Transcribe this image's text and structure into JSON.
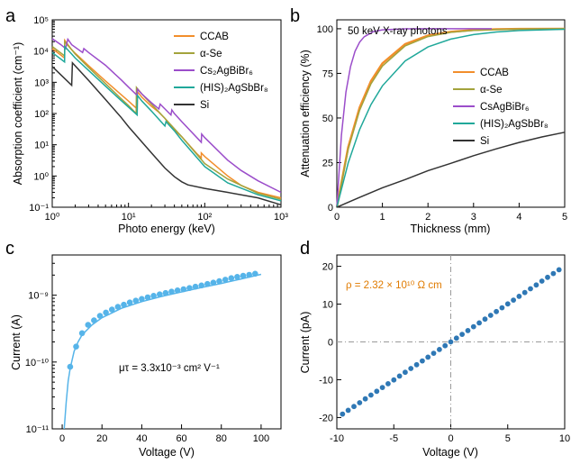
{
  "chart_data": [
    {
      "panel": "a",
      "type": "line",
      "xlabel": "Photo energy (keV)",
      "ylabel": "Absorption coefficient (cm⁻¹)",
      "xscale": "log",
      "yscale": "log",
      "xlim": [
        1,
        1000
      ],
      "ylim": [
        0.1,
        100000
      ],
      "xticks": [
        "10⁰",
        "10¹",
        "10²",
        "10³"
      ],
      "yticks": [
        "10⁻¹",
        "10⁰",
        "10¹",
        "10²",
        "10³",
        "10⁴",
        "10⁵"
      ],
      "legend_position": "top-right",
      "series": [
        {
          "name": "CCAB",
          "color": "#f28e2b",
          "points": [
            [
              1,
              12000
            ],
            [
              1.45,
              6000
            ],
            [
              1.46,
              22000
            ],
            [
              1.8,
              11000
            ],
            [
              2,
              8500
            ],
            [
              3,
              3400
            ],
            [
              5,
              1100
            ],
            [
              8,
              400
            ],
            [
              10,
              250
            ],
            [
              13,
              140
            ],
            [
              13.1,
              500
            ],
            [
              15,
              330
            ],
            [
              20,
              170
            ],
            [
              25,
              110
            ],
            [
              30,
              70
            ],
            [
              40,
              30
            ],
            [
              50,
              18
            ],
            [
              80,
              5
            ],
            [
              90,
              3.8
            ],
            [
              90.1,
              5.5
            ],
            [
              100,
              4.2
            ],
            [
              200,
              1
            ],
            [
              300,
              0.5
            ],
            [
              500,
              0.3
            ],
            [
              1000,
              0.2
            ]
          ]
        },
        {
          "name": "α-Se",
          "color": "#a3a33c",
          "points": [
            [
              1,
              14000
            ],
            [
              1.45,
              7000
            ],
            [
              1.46,
              20000
            ],
            [
              1.8,
              11000
            ],
            [
              2,
              8000
            ],
            [
              3,
              3000
            ],
            [
              5,
              900
            ],
            [
              8,
              300
            ],
            [
              10,
              180
            ],
            [
              12.6,
              100
            ],
            [
              12.7,
              680
            ],
            [
              15,
              420
            ],
            [
              20,
              200
            ],
            [
              30,
              70
            ],
            [
              50,
              18
            ],
            [
              100,
              2.5
            ],
            [
              200,
              0.8
            ],
            [
              500,
              0.28
            ],
            [
              1000,
              0.18
            ]
          ]
        },
        {
          "name": "Cs₂AgBiBr₆",
          "color": "#9b4dca",
          "points": [
            [
              1,
              25000
            ],
            [
              1.3,
              16000
            ],
            [
              1.5,
              12000
            ],
            [
              1.6,
              24000
            ],
            [
              1.8,
              16000
            ],
            [
              2.5,
              9000
            ],
            [
              2.6,
              12000
            ],
            [
              3,
              9000
            ],
            [
              5,
              3500
            ],
            [
              8,
              1200
            ],
            [
              10,
              700
            ],
            [
              13,
              380
            ],
            [
              13.1,
              600
            ],
            [
              15,
              420
            ],
            [
              20,
              220
            ],
            [
              25,
              140
            ],
            [
              26,
              200
            ],
            [
              30,
              140
            ],
            [
              36,
              90
            ],
            [
              37,
              130
            ],
            [
              40,
              100
            ],
            [
              50,
              55
            ],
            [
              90,
              12
            ],
            [
              91,
              22
            ],
            [
              100,
              17
            ],
            [
              200,
              3.2
            ],
            [
              300,
              1.5
            ],
            [
              500,
              0.7
            ],
            [
              1000,
              0.3
            ]
          ]
        },
        {
          "name": "(HIS)₂AgSbBr₈",
          "color": "#20a89a",
          "points": [
            [
              1,
              9000
            ],
            [
              1.45,
              4500
            ],
            [
              1.46,
              14000
            ],
            [
              1.8,
              8000
            ],
            [
              2,
              6000
            ],
            [
              3,
              2400
            ],
            [
              5,
              750
            ],
            [
              8,
              260
            ],
            [
              10,
              160
            ],
            [
              13,
              90
            ],
            [
              13.1,
              380
            ],
            [
              15,
              250
            ],
            [
              20,
              120
            ],
            [
              30,
              40
            ],
            [
              31,
              55
            ],
            [
              40,
              28
            ],
            [
              50,
              14
            ],
            [
              100,
              2
            ],
            [
              200,
              0.6
            ],
            [
              500,
              0.25
            ],
            [
              1000,
              0.16
            ]
          ]
        },
        {
          "name": "Si",
          "color": "#333333",
          "points": [
            [
              1,
              3200
            ],
            [
              1.8,
              800
            ],
            [
              1.84,
              4200
            ],
            [
              3,
              1150
            ],
            [
              5,
              280
            ],
            [
              8,
              75
            ],
            [
              10,
              38
            ],
            [
              20,
              5.5
            ],
            [
              30,
              1.8
            ],
            [
              40,
              0.95
            ],
            [
              50,
              0.65
            ],
            [
              60,
              0.52
            ],
            [
              100,
              0.4
            ],
            [
              200,
              0.3
            ],
            [
              500,
              0.2
            ],
            [
              1000,
              0.12
            ]
          ]
        }
      ]
    },
    {
      "panel": "b",
      "type": "line",
      "xlabel": "Thickness (mm)",
      "ylabel": "Attenuation efficiency (%)",
      "annotation": "50 keV X-ray photons",
      "xlim": [
        0,
        5
      ],
      "ylim": [
        0,
        105
      ],
      "xticks": [
        0,
        1,
        2,
        3,
        4,
        5
      ],
      "yticks": [
        0,
        25,
        50,
        75,
        100
      ],
      "legend_position": "middle-right",
      "series": [
        {
          "name": "CCAB",
          "color": "#f28e2b",
          "points": [
            [
              0,
              0
            ],
            [
              0.25,
              33.6
            ],
            [
              0.5,
              55.9
            ],
            [
              0.75,
              70.7
            ],
            [
              1,
              80.6
            ],
            [
              1.5,
              91.4
            ],
            [
              2,
              96.2
            ],
            [
              2.5,
              98.3
            ],
            [
              3,
              99.3
            ],
            [
              3.5,
              99.7
            ],
            [
              4,
              99.9
            ],
            [
              5,
              100
            ]
          ]
        },
        {
          "name": "α-Se",
          "color": "#a3a33c",
          "points": [
            [
              0,
              0
            ],
            [
              0.25,
              32.4
            ],
            [
              0.5,
              54.3
            ],
            [
              0.75,
              69.1
            ],
            [
              1,
              79.1
            ],
            [
              1.5,
              90.4
            ],
            [
              2,
              95.6
            ],
            [
              2.5,
              98
            ],
            [
              3,
              99.1
            ],
            [
              3.5,
              99.6
            ],
            [
              4,
              99.8
            ],
            [
              5,
              100
            ]
          ]
        },
        {
          "name": "CsAgBiBr₆",
          "color": "#9b4dca",
          "points": [
            [
              0,
              0
            ],
            [
              0.1,
              40.4
            ],
            [
              0.2,
              64.5
            ],
            [
              0.3,
              78.8
            ],
            [
              0.4,
              87.4
            ],
            [
              0.5,
              92.5
            ],
            [
              0.6,
              95.5
            ],
            [
              0.8,
              98.4
            ],
            [
              1,
              99.4
            ],
            [
              1.5,
              99.97
            ],
            [
              2,
              100
            ],
            [
              3.4,
              100
            ]
          ]
        },
        {
          "name": "(HIS)₂AgSbBr₈",
          "color": "#20a89a",
          "points": [
            [
              0,
              0
            ],
            [
              0.25,
              24.8
            ],
            [
              0.5,
              43.5
            ],
            [
              0.75,
              57.5
            ],
            [
              1,
              68
            ],
            [
              1.5,
              82
            ],
            [
              2,
              89.8
            ],
            [
              2.5,
              94.2
            ],
            [
              3,
              96.7
            ],
            [
              3.5,
              98.2
            ],
            [
              4,
              99
            ],
            [
              5,
              99.7
            ]
          ]
        },
        {
          "name": "Si",
          "color": "#333333",
          "points": [
            [
              0,
              0
            ],
            [
              0.5,
              5.5
            ],
            [
              1,
              10.9
            ],
            [
              1.5,
              15.5
            ],
            [
              2,
              20.5
            ],
            [
              2.5,
              24.6
            ],
            [
              3,
              28.9
            ],
            [
              3.5,
              32.7
            ],
            [
              4,
              36.3
            ],
            [
              4.5,
              39.4
            ],
            [
              5,
              42
            ]
          ]
        }
      ]
    },
    {
      "panel": "c",
      "type": "scatter",
      "xlabel": "Voltage (V)",
      "ylabel": "Current (A)",
      "annotation": "μτ = 3.3x10⁻³ cm² V⁻¹",
      "xlim": [
        -5,
        110
      ],
      "ylim": [
        1e-11,
        4e-09
      ],
      "yscale": "log",
      "xticks": [
        0,
        20,
        40,
        60,
        80,
        100
      ],
      "yticks": [
        "10⁻¹¹",
        "10⁻¹⁰",
        "10⁻⁹"
      ],
      "color": "#56b4e9",
      "points": [
        [
          4,
          8.5e-11
        ],
        [
          7,
          1.7e-10
        ],
        [
          10,
          2.7e-10
        ],
        [
          13,
          3.6e-10
        ],
        [
          16,
          4.2e-10
        ],
        [
          19,
          4.9e-10
        ],
        [
          22,
          5.5e-10
        ],
        [
          25,
          6.1e-10
        ],
        [
          28,
          6.7e-10
        ],
        [
          31,
          7.2e-10
        ],
        [
          34,
          7.8e-10
        ],
        [
          37,
          8.3e-10
        ],
        [
          40,
          8.8e-10
        ],
        [
          43,
          9.3e-10
        ],
        [
          46,
          9.8e-10
        ],
        [
          49,
          1.03e-09
        ],
        [
          52,
          1.08e-09
        ],
        [
          55,
          1.13e-09
        ],
        [
          58,
          1.18e-09
        ],
        [
          61,
          1.23e-09
        ],
        [
          64,
          1.28e-09
        ],
        [
          67,
          1.34e-09
        ],
        [
          70,
          1.4e-09
        ],
        [
          73,
          1.47e-09
        ],
        [
          76,
          1.54e-09
        ],
        [
          79,
          1.62e-09
        ],
        [
          82,
          1.71e-09
        ],
        [
          85,
          1.8e-09
        ],
        [
          88,
          1.88e-09
        ],
        [
          91,
          1.95e-09
        ],
        [
          94,
          2.02e-09
        ],
        [
          97,
          2.1e-09
        ]
      ],
      "fit": [
        [
          1,
          1e-11
        ],
        [
          2,
          2.5e-11
        ],
        [
          3,
          5.2e-11
        ],
        [
          4,
          8e-11
        ],
        [
          6,
          1.45e-10
        ],
        [
          8,
          2e-10
        ],
        [
          10,
          2.55e-10
        ],
        [
          15,
          3.6e-10
        ],
        [
          20,
          4.6e-10
        ],
        [
          30,
          6.4e-10
        ],
        [
          40,
          8e-10
        ],
        [
          50,
          9.6e-10
        ],
        [
          60,
          1.12e-09
        ],
        [
          70,
          1.3e-09
        ],
        [
          80,
          1.5e-09
        ],
        [
          90,
          1.75e-09
        ],
        [
          100,
          2.05e-09
        ]
      ]
    },
    {
      "panel": "d",
      "type": "scatter",
      "xlabel": "Voltage (V)",
      "ylabel": "Current (pA)",
      "annotation": "ρ = 2.32 × 10¹⁰ Ω cm",
      "xlim": [
        -10,
        10
      ],
      "ylim": [
        -23,
        23
      ],
      "xticks": [
        -10,
        -5,
        0,
        5,
        10
      ],
      "yticks": [
        -20,
        -10,
        0,
        10,
        20
      ],
      "color": "#2f78b5",
      "slope_pA_per_V": 2.01,
      "x_start": -9.5,
      "x_end": 9.5,
      "x_step": 0.5
    }
  ],
  "panel_labels": [
    "a",
    "b",
    "c",
    "d"
  ]
}
